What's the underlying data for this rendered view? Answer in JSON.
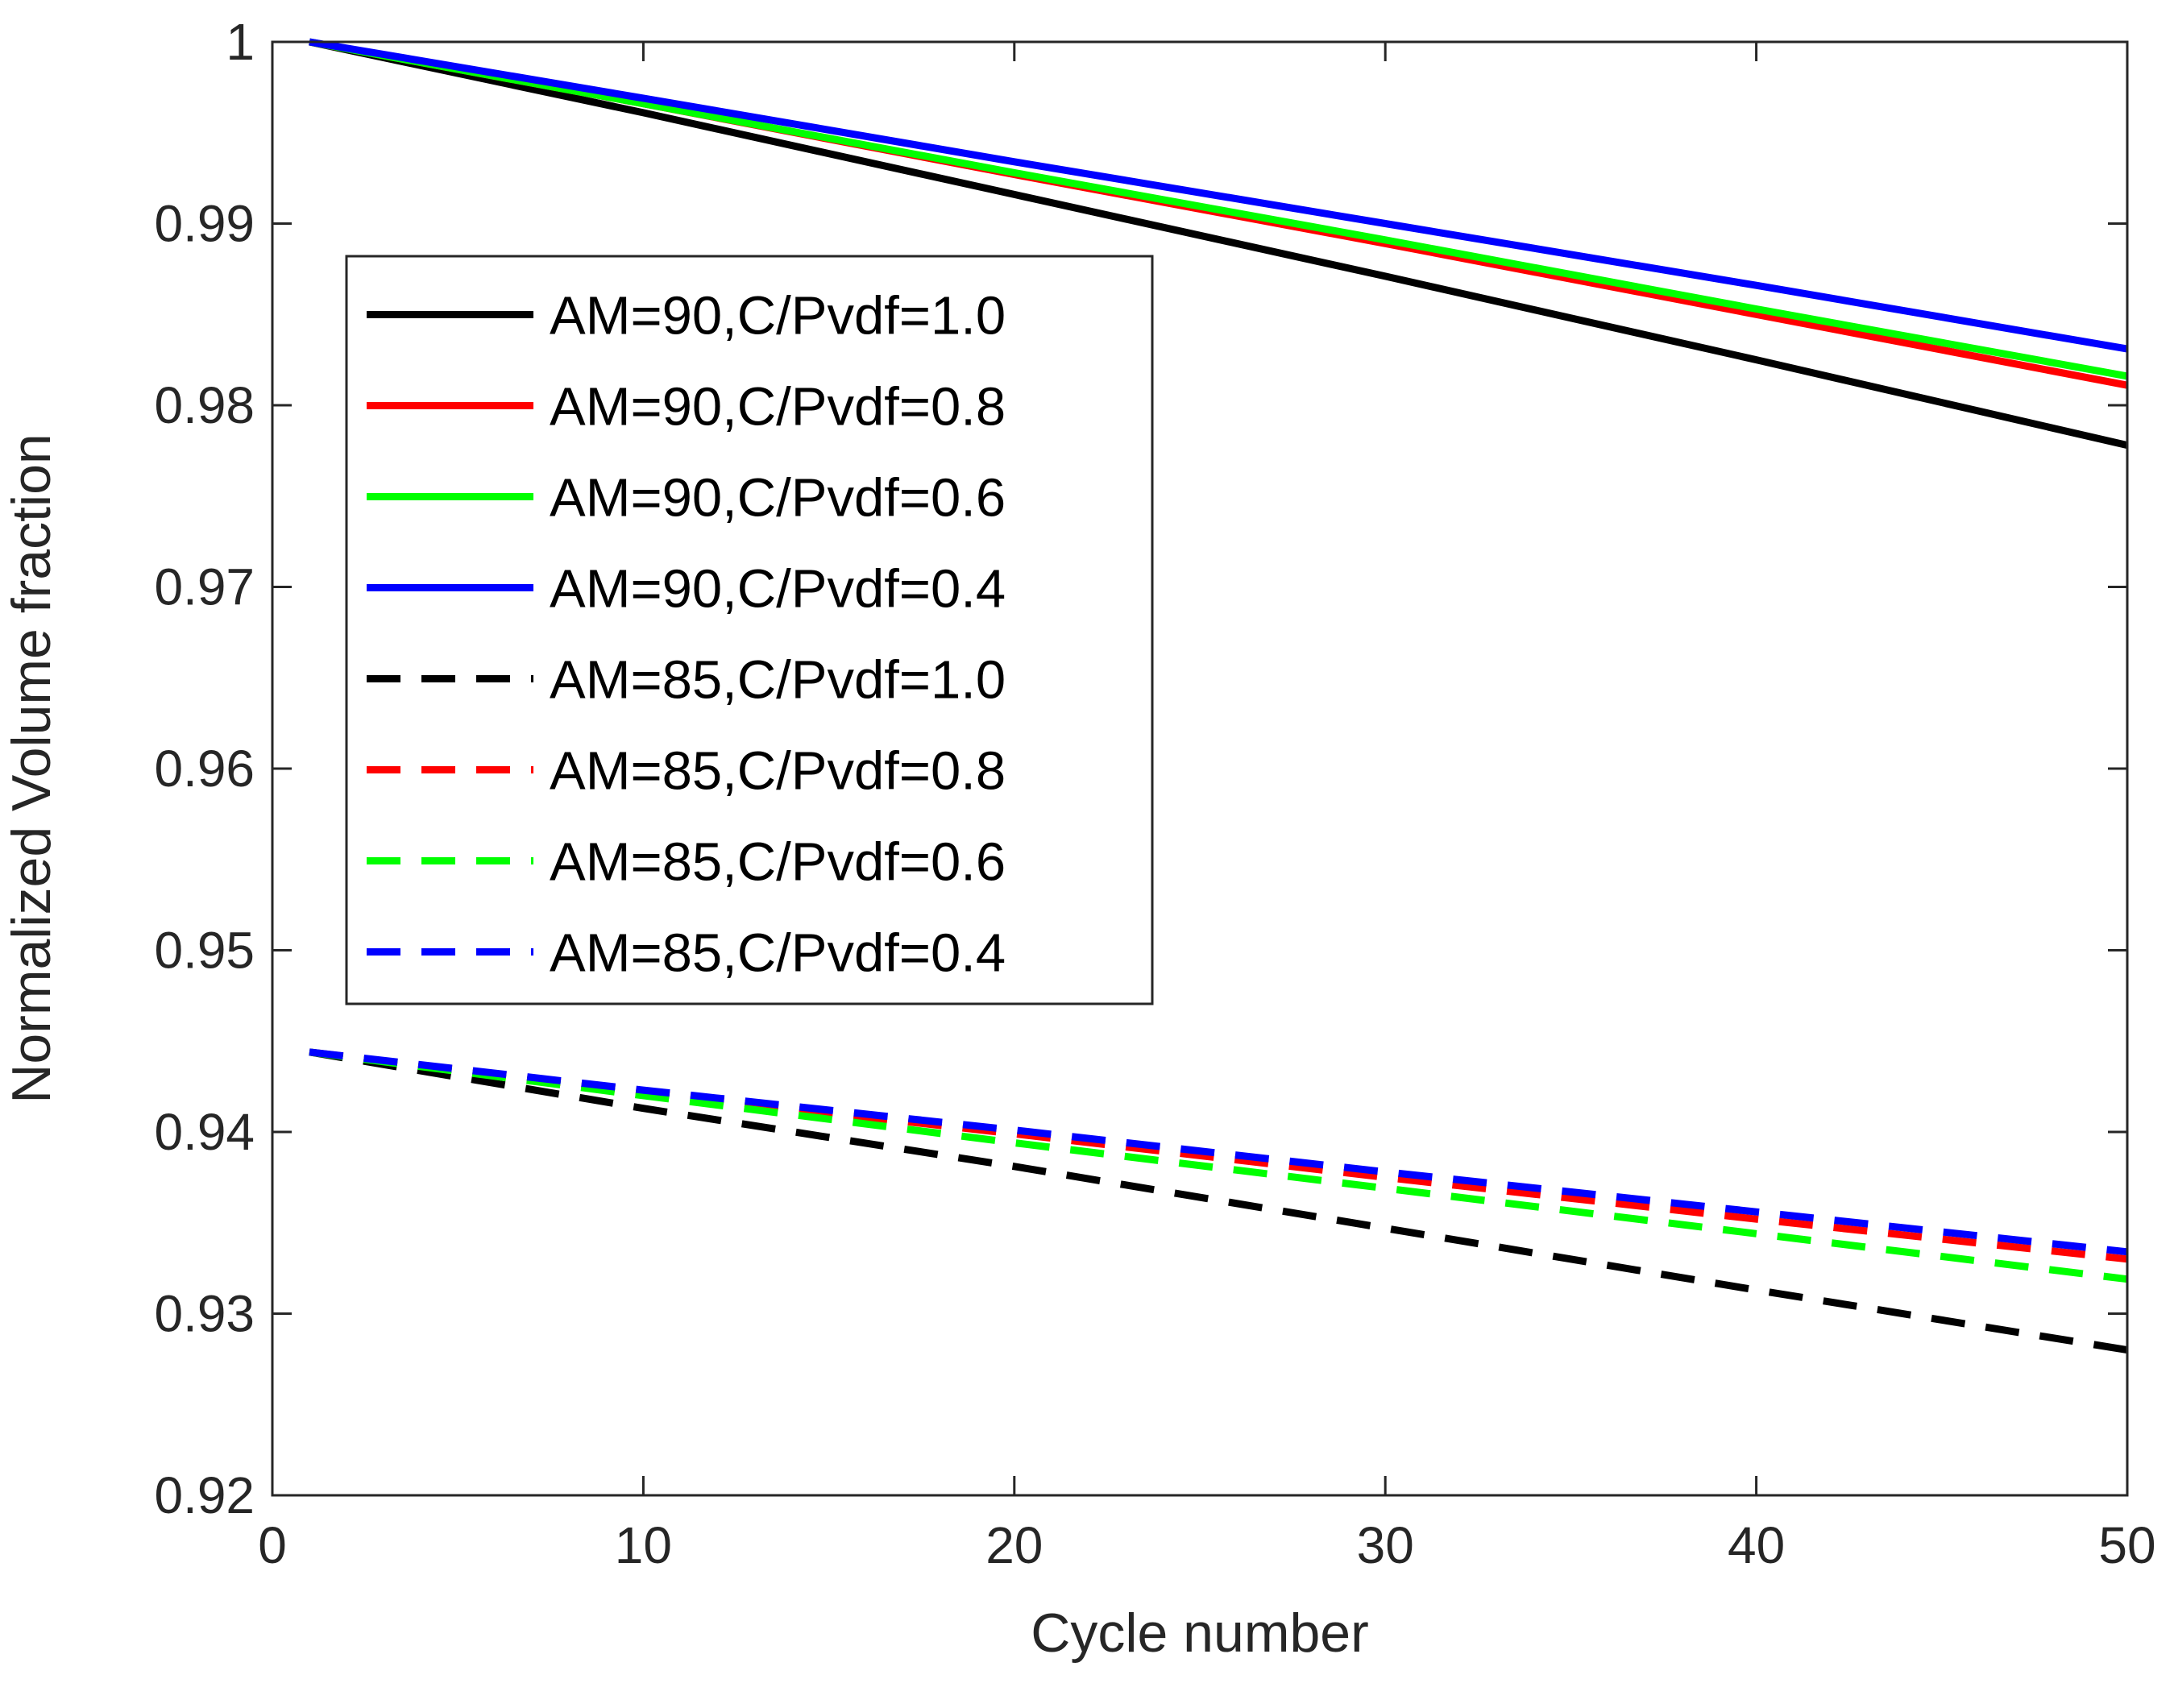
{
  "chart_data": {
    "type": "line",
    "xlabel": "Cycle number",
    "ylabel": "Normalized Volume fraction",
    "xlim": [
      0,
      50
    ],
    "ylim": [
      0.92,
      1.0
    ],
    "xticks": [
      0,
      10,
      20,
      30,
      40,
      50
    ],
    "xtick_labels": [
      "0",
      "10",
      "20",
      "30",
      "40",
      "50"
    ],
    "yticks": [
      0.92,
      0.93,
      0.94,
      0.95,
      0.96,
      0.97,
      0.98,
      0.99,
      1.0
    ],
    "ytick_labels": [
      "0.92",
      "0.93",
      "0.94",
      "0.95",
      "0.96",
      "0.97",
      "0.98",
      "0.99",
      "1"
    ],
    "grid": false,
    "legend_position": "left, upper middle",
    "x": [
      1,
      10,
      20,
      30,
      40,
      50
    ],
    "series": [
      {
        "name": "AM=90,C/Pvdf=1.0",
        "color": "#000000",
        "dash": "solid",
        "values": [
          1.0,
          0.9961,
          0.9916,
          0.9871,
          0.9825,
          0.9778
        ]
      },
      {
        "name": "AM=90,C/Pvdf=0.8",
        "color": "#ff0000",
        "dash": "solid",
        "values": [
          1.0,
          0.9966,
          0.9927,
          0.9889,
          0.985,
          0.9811
        ]
      },
      {
        "name": "AM=90,C/Pvdf=0.6",
        "color": "#00ff00",
        "dash": "solid",
        "values": [
          1.0,
          0.9966,
          0.9928,
          0.9891,
          0.9853,
          0.9816
        ]
      },
      {
        "name": "AM=90,C/Pvdf=0.4",
        "color": "#0000ff",
        "dash": "solid",
        "values": [
          1.0,
          0.9969,
          0.9934,
          0.99,
          0.9866,
          0.9831
        ]
      },
      {
        "name": "AM=85,C/Pvdf=1.0",
        "color": "#000000",
        "dash": "dashed",
        "values": [
          0.9444,
          0.9413,
          0.9381,
          0.9347,
          0.9313,
          0.928
        ]
      },
      {
        "name": "AM=85,C/Pvdf=0.8",
        "color": "#ff0000",
        "dash": "dashed",
        "values": [
          0.9444,
          0.9422,
          0.9399,
          0.9375,
          0.9352,
          0.933
        ]
      },
      {
        "name": "AM=85,C/Pvdf=0.6",
        "color": "#00ff00",
        "dash": "dashed",
        "values": [
          0.9444,
          0.942,
          0.9394,
          0.9369,
          0.9344,
          0.9319
        ]
      },
      {
        "name": "AM=85,C/Pvdf=0.4",
        "color": "#0000ff",
        "dash": "dashed",
        "values": [
          0.9444,
          0.9423,
          0.9401,
          0.9378,
          0.9356,
          0.9334
        ]
      }
    ]
  }
}
